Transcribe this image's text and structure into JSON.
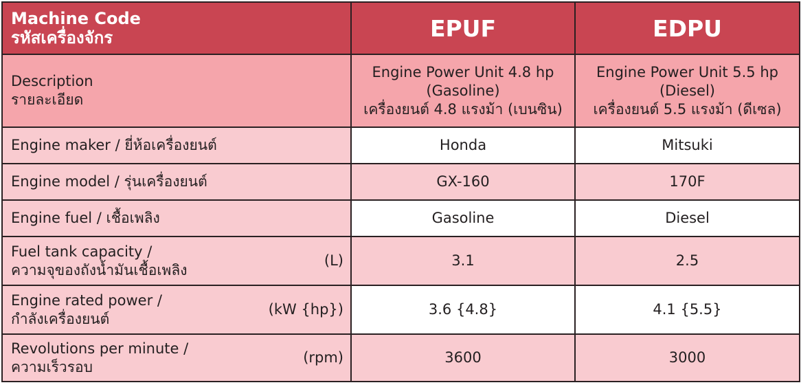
{
  "header": {
    "label_en": "Machine Code",
    "label_th": "รหัสเครื่องจักร",
    "codes": [
      "EPUF",
      "EDPU"
    ]
  },
  "description": {
    "label_en": "Description",
    "label_th": "รายละเอียด",
    "values": [
      [
        "Engine Power Unit 4.8 hp",
        "(Gasoline)",
        "เครื่องยนต์ 4.8 แรงม้า (เบนซิน)"
      ],
      [
        "Engine Power Unit 5.5 hp",
        "(Diesel)",
        "เครื่องยนต์ 5.5 แรงม้า (ดีเซล)"
      ]
    ]
  },
  "rows": [
    {
      "label": "Engine maker / ยี่ห้อเครื่องยนต์",
      "values": [
        "Honda",
        "Mitsuki"
      ]
    },
    {
      "label": "Engine model / รุ่นเครื่องยนต์",
      "values": [
        "GX-160",
        "170F"
      ]
    },
    {
      "label": "Engine fuel / เชื้อเพลิง",
      "values": [
        "Gasoline",
        "Diesel"
      ]
    },
    {
      "label": "Fuel tank capacity /",
      "label2": "ความจุของถังน้ำมันเชื้อเพลิง",
      "unit": "(L)",
      "values": [
        "3.1",
        "2.5"
      ]
    },
    {
      "label": "Engine rated power /",
      "label2": "กำลังเครื่องยนต์",
      "unit": "(kW {hp})",
      "values": [
        "3.6 {4.8}",
        "4.1 {5.5}"
      ]
    },
    {
      "label": "Revolutions per minute /",
      "label2": "ความเร็วรอบ",
      "unit": "(rpm)",
      "values": [
        "3600",
        "3000"
      ]
    }
  ],
  "colors": {
    "header": "#c94552",
    "description": "#f5a5ab",
    "row_pink": "#f9cbd0",
    "row_white": "#ffffff"
  }
}
